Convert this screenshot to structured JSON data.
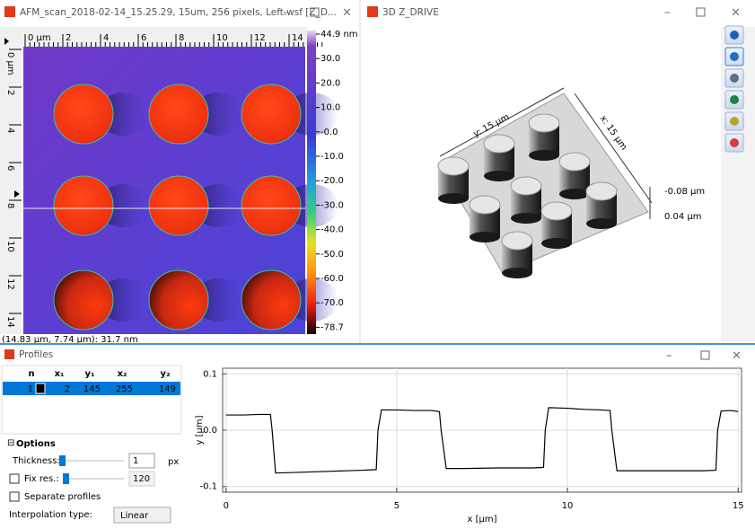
{
  "image_window": {
    "title": "AFM_scan_2018-02-14_15.25.29, 15um, 256 pixels, Left.wsf [Z_D...",
    "ruler_top": [
      "0 µm",
      "2",
      "4",
      "6",
      "8",
      "10",
      "12",
      "14"
    ],
    "ruler_left": [
      "0 µm",
      "2",
      "4",
      "6",
      "8",
      "10",
      "12",
      "14"
    ],
    "colorbar_labels": [
      "44.9 nm",
      "30.0",
      "20.0",
      "10.0",
      "-0.0",
      "-10.0",
      "-20.0",
      "-30.0",
      "-40.0",
      "-50.0",
      "-60.0",
      "-70.0",
      "-78.7"
    ],
    "status": "(14.83 µm, 7.74 µm): 31.7 nm"
  },
  "view3d_window": {
    "title": "3D Z_DRIVE",
    "y_label": "y: 15 µm",
    "x_label": "x: 15 µm",
    "z_top": "-0.08 µm",
    "z_bottom": "0.04 µm"
  },
  "profiles_window": {
    "title": "Profiles",
    "table": {
      "columns": [
        "n",
        "x₁",
        "y₁",
        "x₂",
        "y₂"
      ],
      "rows": [
        [
          1,
          2,
          145,
          255,
          149
        ]
      ]
    },
    "options": {
      "section": "Options",
      "thickness_label": "Thickness:",
      "thickness_value": 1,
      "thickness_unit": "px",
      "fix_res_label": "Fix res.:",
      "fix_res_value": 120,
      "separate_profiles": "Separate profiles",
      "interpolation_label": "Interpolation type:",
      "interpolation_value": "Linear"
    }
  },
  "chart_data": {
    "type": "line",
    "x_label": "x [µm]",
    "y_label": "y [µm]",
    "x": [
      0,
      0.5,
      1.0,
      1.3,
      1.35,
      1.45,
      2.0,
      3.0,
      4.0,
      4.4,
      4.45,
      4.55,
      5.0,
      5.5,
      6.0,
      6.25,
      6.3,
      6.45,
      7.0,
      8.0,
      9.0,
      9.3,
      9.35,
      9.45,
      10.0,
      10.5,
      11.0,
      11.25,
      11.3,
      11.45,
      12.0,
      13.0,
      14.0,
      14.35,
      14.4,
      14.5,
      14.8,
      15.0
    ],
    "values": [
      0.027,
      0.027,
      0.028,
      0.028,
      0.0,
      -0.076,
      -0.075,
      -0.073,
      -0.071,
      -0.07,
      0.0,
      0.036,
      0.036,
      0.035,
      0.035,
      0.033,
      0.0,
      -0.068,
      -0.068,
      -0.067,
      -0.067,
      -0.066,
      0.0,
      0.04,
      0.039,
      0.037,
      0.036,
      0.035,
      0.0,
      -0.072,
      -0.072,
      -0.072,
      -0.072,
      -0.071,
      0.0,
      0.034,
      0.035,
      0.033
    ],
    "color": "#000000",
    "xlim": [
      -0.1,
      15.1
    ],
    "ylim": [
      -0.11,
      0.11
    ],
    "xticks": [
      0,
      5,
      10,
      15
    ],
    "yticks": [
      0.1,
      {
        "value": 0,
        "label": "0.0"
      },
      -0.1
    ],
    "grid": true
  }
}
